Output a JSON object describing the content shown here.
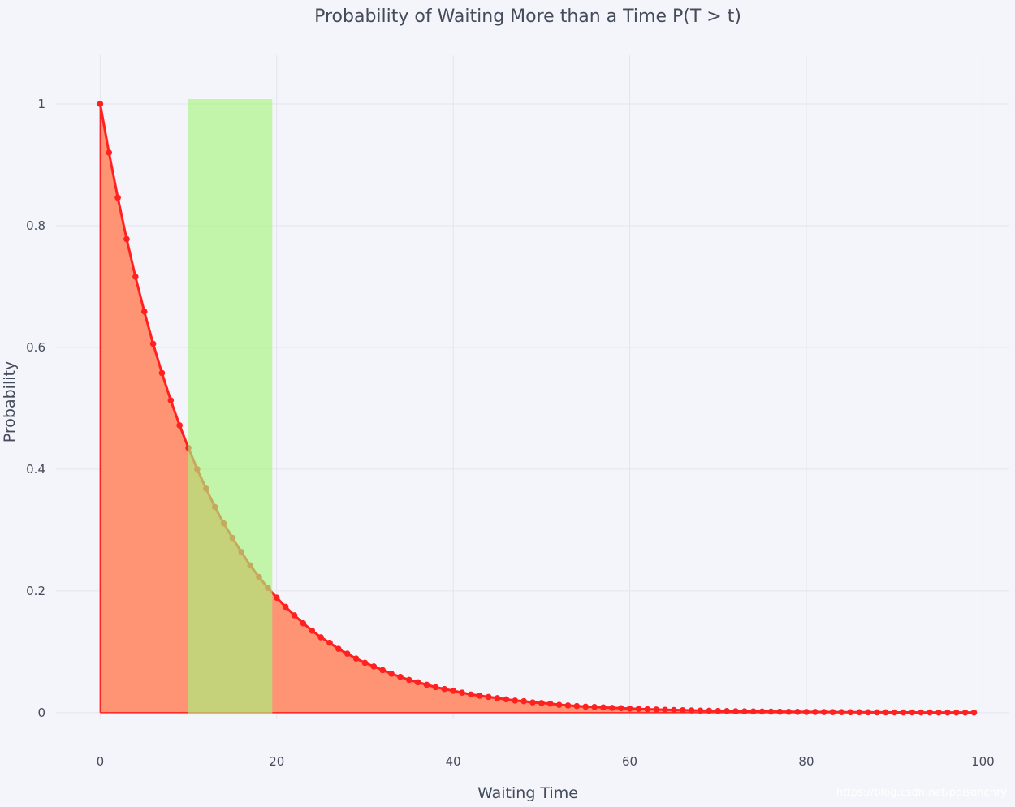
{
  "chart_data": {
    "type": "area",
    "title": "Probability of Waiting More than a Time P(T > t)",
    "xlabel": "Waiting Time",
    "ylabel": "Probability",
    "xlim": [
      -5,
      103
    ],
    "ylim": [
      -0.0095,
      1.08
    ],
    "x_ticks": [
      0,
      20,
      40,
      60,
      80,
      100
    ],
    "y_ticks": [
      0,
      0.2,
      0.4,
      0.6,
      0.8,
      1
    ],
    "x_tick_labels": [
      "0",
      "20",
      "40",
      "60",
      "80",
      "100"
    ],
    "y_tick_labels": [
      "0",
      "0.2",
      "0.4",
      "0.6",
      "0.8",
      "1"
    ],
    "grid": true,
    "series": [
      {
        "kind": "line+markers+fill",
        "color": "#ff2020",
        "fill_color": "#ff9474",
        "x": [
          0,
          1,
          2,
          3,
          4,
          5,
          6,
          7,
          8,
          9,
          10,
          11,
          12,
          13,
          14,
          15,
          16,
          17,
          18,
          19,
          20,
          21,
          22,
          23,
          24,
          25,
          26,
          27,
          28,
          29,
          30,
          31,
          32,
          33,
          34,
          35,
          36,
          37,
          38,
          39,
          40,
          41,
          42,
          43,
          44,
          45,
          46,
          47,
          48,
          49,
          50,
          51,
          52,
          53,
          54,
          55,
          56,
          57,
          58,
          59,
          60,
          61,
          62,
          63,
          64,
          65,
          66,
          67,
          68,
          69,
          70,
          71,
          72,
          73,
          74,
          75,
          76,
          77,
          78,
          79,
          80,
          81,
          82,
          83,
          84,
          85,
          86,
          87,
          88,
          89,
          90,
          91,
          92,
          93,
          94,
          95,
          96,
          97,
          98,
          99
        ],
        "y": [
          1.0,
          0.92,
          0.846,
          0.778,
          0.716,
          0.659,
          0.606,
          0.558,
          0.513,
          0.472,
          0.435,
          0.4,
          0.368,
          0.338,
          0.311,
          0.287,
          0.264,
          0.242,
          0.223,
          0.205,
          0.189,
          0.174,
          0.16,
          0.147,
          0.135,
          0.124,
          0.115,
          0.105,
          0.097,
          0.089,
          0.082,
          0.076,
          0.07,
          0.064,
          0.059,
          0.054,
          0.05,
          0.046,
          0.042,
          0.039,
          0.036,
          0.033,
          0.03,
          0.028,
          0.026,
          0.024,
          0.022,
          0.02,
          0.019,
          0.017,
          0.016,
          0.015,
          0.013,
          0.012,
          0.011,
          0.01,
          0.0095,
          0.0087,
          0.008,
          0.0074,
          0.0068,
          0.0062,
          0.0057,
          0.0053,
          0.0048,
          0.0045,
          0.0041,
          0.0038,
          0.0035,
          0.0032,
          0.0029,
          0.0027,
          0.0025,
          0.0023,
          0.0021,
          0.0019,
          0.0018,
          0.0016,
          0.0015,
          0.0014,
          0.0013,
          0.0012,
          0.0011,
          0.001,
          0.0009,
          0.0008,
          0.0008,
          0.0007,
          0.0006,
          0.0006,
          0.0005,
          0.0005,
          0.0005,
          0.0004,
          0.0004,
          0.0003,
          0.0003,
          0.0003,
          0.0003,
          0.0003
        ]
      },
      {
        "kind": "highlight-band",
        "color": "#a8f27e",
        "opacity": 0.65,
        "x_range": [
          10,
          19.5
        ],
        "y_range": [
          -0.003,
          1.008
        ]
      }
    ],
    "watermark": "https://blog.csdn.net/poisonchry"
  }
}
